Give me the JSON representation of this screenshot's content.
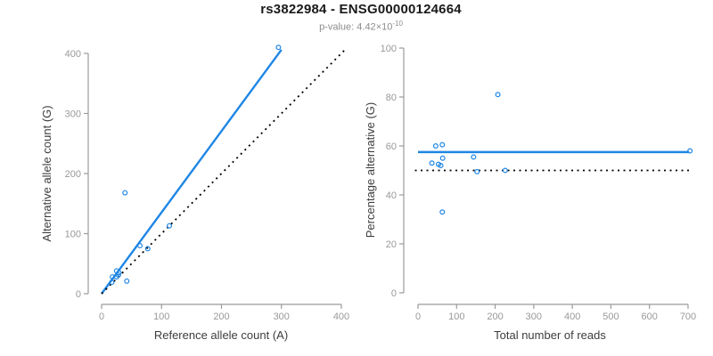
{
  "header": {
    "title": "rs3822984 - ENSG00000124664",
    "p_value_label": "p-value: ",
    "p_value_mantissa": "4.42",
    "p_value_times": "×",
    "p_value_base": "10",
    "p_value_exponent": "-10"
  },
  "colors": {
    "blue": "#1E86E5",
    "black": "#000000",
    "axis_gray": "#9b9b9b",
    "tick_label_gray": "#999999",
    "axis_label_dark": "#3d3d3d"
  },
  "chart_data": [
    {
      "type": "scatter",
      "name": "allele-counts-plot",
      "xlabel": "Reference allele count (A)",
      "ylabel": "Alternative allele count (G)",
      "xlim": [
        0,
        400
      ],
      "ylim": [
        0,
        400
      ],
      "xticks": [
        0,
        100,
        200,
        300,
        400
      ],
      "yticks": [
        0,
        100,
        200,
        300,
        400
      ],
      "grid": false,
      "points": [
        [
          17,
          19
        ],
        [
          18,
          28
        ],
        [
          25,
          28
        ],
        [
          28,
          31
        ],
        [
          25,
          38
        ],
        [
          29,
          35
        ],
        [
          42,
          21
        ],
        [
          64,
          80
        ],
        [
          77,
          75
        ],
        [
          39,
          168
        ],
        [
          113,
          113
        ],
        [
          295,
          410
        ]
      ],
      "lines": [
        {
          "name": "fit-line",
          "style": "solid",
          "color_key": "blue",
          "points": [
            [
              0,
              0
            ],
            [
              300,
              406
            ]
          ]
        },
        {
          "name": "identity-line",
          "style": "dotted",
          "color_key": "black",
          "points": [
            [
              0,
              0
            ],
            [
              405,
              405
            ]
          ]
        }
      ]
    },
    {
      "type": "scatter",
      "name": "percentage-alternative-plot",
      "xlabel": "Total number of reads",
      "ylabel": "Percentage alternative (G)",
      "xlim": [
        0,
        700
      ],
      "ylim": [
        0,
        100
      ],
      "xticks": [
        0,
        100,
        200,
        300,
        400,
        500,
        600,
        700
      ],
      "yticks": [
        0,
        20,
        40,
        60,
        80,
        100
      ],
      "grid": false,
      "points": [
        [
          36,
          53
        ],
        [
          46,
          60
        ],
        [
          53,
          52.5
        ],
        [
          59,
          52
        ],
        [
          63,
          60.5
        ],
        [
          64,
          55
        ],
        [
          63,
          33
        ],
        [
          144,
          55.5
        ],
        [
          153,
          49.5
        ],
        [
          207,
          81
        ],
        [
          226,
          50
        ],
        [
          705,
          58
        ]
      ],
      "lines": [
        {
          "name": "mean-percentage-line",
          "style": "solid",
          "color_key": "blue",
          "points": [
            [
              0,
              57.5
            ],
            [
              703,
              57.5
            ]
          ]
        },
        {
          "name": "fifty-percent-line",
          "style": "dotted",
          "color_key": "black",
          "points": [
            [
              -8,
              50
            ],
            [
              710,
              50
            ]
          ]
        }
      ]
    }
  ]
}
